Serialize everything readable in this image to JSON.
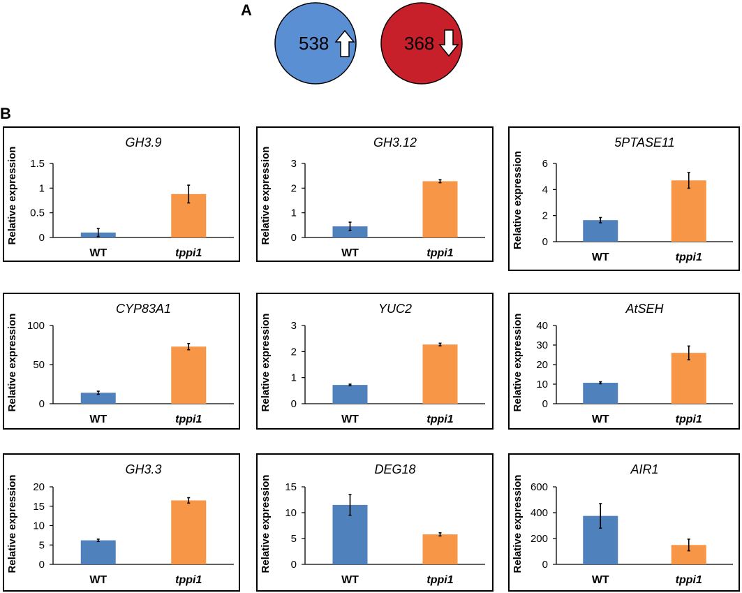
{
  "panel_a": {
    "label": "A",
    "up": {
      "value": "538",
      "color": "#5b8fd4",
      "icon": "arrow-up-icon"
    },
    "down": {
      "value": "368",
      "color": "#c8202a",
      "icon": "arrow-down-icon"
    }
  },
  "panel_b": {
    "label": "B"
  },
  "colors": {
    "wt": "#4f81bd",
    "mutant": "#f79646"
  },
  "chart_data": [
    {
      "type": "bar",
      "title": "GH3.9",
      "ylabel": "Relative expression",
      "categories": [
        "WT",
        "tppi1"
      ],
      "values": [
        0.1,
        0.88
      ],
      "errors": [
        0.08,
        0.18
      ],
      "ylim": [
        0,
        1.5
      ],
      "yticks": [
        "0",
        "0.5",
        "1",
        "1.5"
      ]
    },
    {
      "type": "bar",
      "title": "GH3.12",
      "ylabel": "Relative expression",
      "categories": [
        "WT",
        "tppi1"
      ],
      "values": [
        0.45,
        2.28
      ],
      "errors": [
        0.17,
        0.06
      ],
      "ylim": [
        0,
        3
      ],
      "yticks": [
        "0",
        "1",
        "2",
        "3"
      ]
    },
    {
      "type": "bar",
      "title": "5PTASE11",
      "ylabel": "Relative expression",
      "categories": [
        "WT",
        "tppi1"
      ],
      "values": [
        1.65,
        4.7
      ],
      "errors": [
        0.2,
        0.6
      ],
      "ylim": [
        0,
        6
      ],
      "yticks": [
        "0",
        "2",
        "4",
        "6"
      ]
    },
    {
      "type": "bar",
      "title": "CYP83A1",
      "ylabel": "Relative expression",
      "categories": [
        "WT",
        "tppi1"
      ],
      "values": [
        14,
        73
      ],
      "errors": [
        2,
        4
      ],
      "ylim": [
        0,
        100
      ],
      "yticks": [
        "0",
        "50",
        "100"
      ]
    },
    {
      "type": "bar",
      "title": "YUC2",
      "ylabel": "Relative expression",
      "categories": [
        "WT",
        "tppi1"
      ],
      "values": [
        0.72,
        2.27
      ],
      "errors": [
        0.03,
        0.05
      ],
      "ylim": [
        0,
        3
      ],
      "yticks": [
        "0",
        "1",
        "2",
        "3"
      ]
    },
    {
      "type": "bar",
      "title": "AtSEH",
      "ylabel": "Relative expression",
      "categories": [
        "WT",
        "tppi1"
      ],
      "values": [
        10.7,
        26
      ],
      "errors": [
        0.5,
        3.5
      ],
      "ylim": [
        0,
        40
      ],
      "yticks": [
        "0",
        "10",
        "20",
        "30",
        "40"
      ]
    },
    {
      "type": "bar",
      "title": "GH3.3",
      "ylabel": "Relative expression",
      "categories": [
        "WT",
        "tppi1"
      ],
      "values": [
        6.2,
        16.5
      ],
      "errors": [
        0.3,
        0.7
      ],
      "ylim": [
        0,
        20
      ],
      "yticks": [
        "0",
        "5",
        "10",
        "15",
        "20"
      ]
    },
    {
      "type": "bar",
      "title": "DEG18",
      "ylabel": "Relative expression",
      "categories": [
        "WT",
        "tppi1"
      ],
      "values": [
        11.5,
        5.8
      ],
      "errors": [
        2.0,
        0.3
      ],
      "ylim": [
        0,
        15
      ],
      "yticks": [
        "0",
        "5",
        "10",
        "15"
      ]
    },
    {
      "type": "bar",
      "title": "AIR1",
      "ylabel": "Relative expression",
      "categories": [
        "WT",
        "tppi1"
      ],
      "values": [
        375,
        150
      ],
      "errors": [
        95,
        45
      ],
      "ylim": [
        0,
        600
      ],
      "yticks": [
        "0",
        "200",
        "400",
        "600"
      ]
    }
  ]
}
